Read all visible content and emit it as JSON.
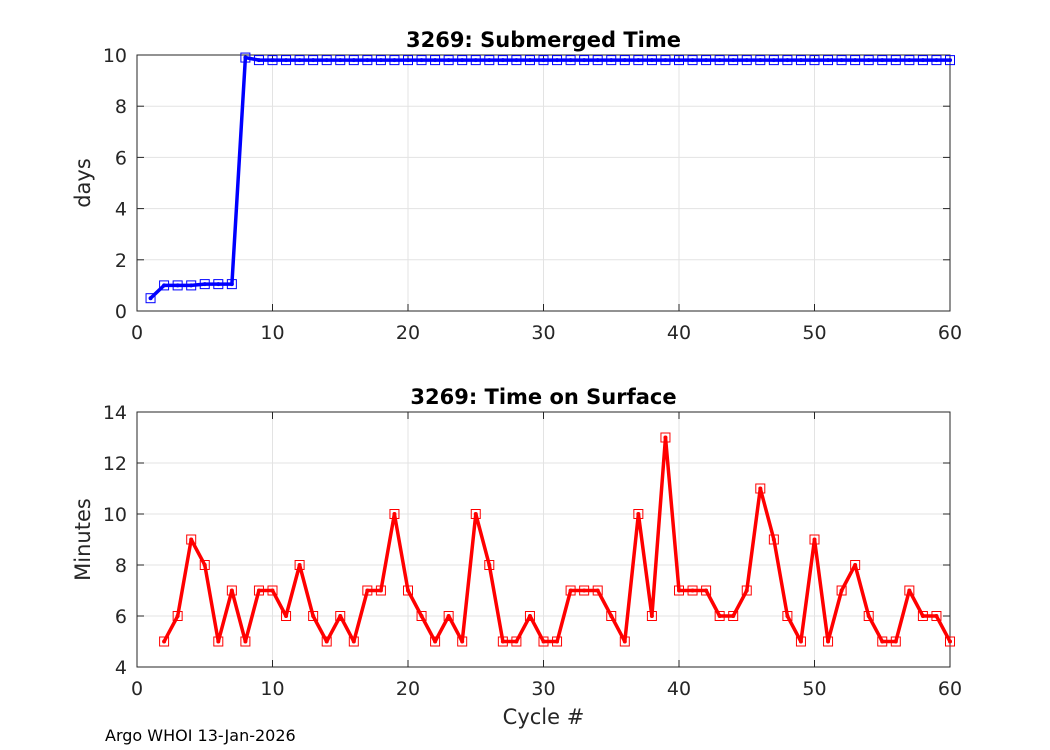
{
  "footer": "Argo WHOI 13-Jan-2026",
  "chart_data": [
    {
      "type": "line",
      "title": "3269: Submerged Time",
      "xlabel": "",
      "ylabel": "days",
      "xlim": [
        0,
        60
      ],
      "ylim": [
        0,
        10
      ],
      "xticks": [
        0,
        10,
        20,
        30,
        40,
        50,
        60
      ],
      "yticks": [
        0,
        2,
        4,
        6,
        8,
        10
      ],
      "grid": true,
      "color": "#0000ff",
      "series": [
        {
          "name": "Submerged Time",
          "x": [
            1,
            2,
            3,
            4,
            5,
            6,
            7,
            8,
            9,
            10,
            11,
            12,
            13,
            14,
            15,
            16,
            17,
            18,
            19,
            20,
            21,
            22,
            23,
            24,
            25,
            26,
            27,
            28,
            29,
            30,
            31,
            32,
            33,
            34,
            35,
            36,
            37,
            38,
            39,
            40,
            41,
            42,
            43,
            44,
            45,
            46,
            47,
            48,
            49,
            50,
            51,
            52,
            53,
            54,
            55,
            56,
            57,
            58,
            59,
            60
          ],
          "values": [
            0.5,
            1.0,
            1.0,
            1.0,
            1.05,
            1.05,
            1.05,
            9.9,
            9.8,
            9.8,
            9.8,
            9.8,
            9.8,
            9.8,
            9.8,
            9.8,
            9.8,
            9.8,
            9.8,
            9.8,
            9.8,
            9.8,
            9.8,
            9.8,
            9.8,
            9.8,
            9.8,
            9.8,
            9.8,
            9.8,
            9.8,
            9.8,
            9.8,
            9.8,
            9.8,
            9.8,
            9.8,
            9.8,
            9.8,
            9.8,
            9.8,
            9.8,
            9.8,
            9.8,
            9.8,
            9.8,
            9.8,
            9.8,
            9.8,
            9.8,
            9.8,
            9.8,
            9.8,
            9.8,
            9.8,
            9.8,
            9.8,
            9.8,
            9.8,
            9.8
          ]
        }
      ]
    },
    {
      "type": "line",
      "title": "3269: Time on Surface",
      "xlabel": "Cycle #",
      "ylabel": "Minutes",
      "xlim": [
        0,
        60
      ],
      "ylim": [
        4,
        14
      ],
      "xticks": [
        0,
        10,
        20,
        30,
        40,
        50,
        60
      ],
      "yticks": [
        4,
        6,
        8,
        10,
        12,
        14
      ],
      "grid": true,
      "color": "#ff0000",
      "series": [
        {
          "name": "Time on Surface",
          "x": [
            2,
            3,
            4,
            5,
            6,
            7,
            8,
            9,
            10,
            11,
            12,
            13,
            14,
            15,
            16,
            17,
            18,
            19,
            20,
            21,
            22,
            23,
            24,
            25,
            26,
            27,
            28,
            29,
            30,
            31,
            32,
            33,
            34,
            35,
            36,
            37,
            38,
            39,
            40,
            41,
            42,
            43,
            44,
            45,
            46,
            47,
            48,
            49,
            50,
            51,
            52,
            53,
            54,
            55,
            56,
            57,
            58,
            59,
            60
          ],
          "values": [
            5,
            6,
            9,
            8,
            5,
            7,
            5,
            7,
            7,
            6,
            8,
            6,
            5,
            6,
            5,
            7,
            7,
            10,
            7,
            6,
            5,
            6,
            5,
            10,
            8,
            5,
            5,
            6,
            5,
            5,
            7,
            7,
            7,
            6,
            5,
            10,
            6,
            13,
            7,
            7,
            7,
            6,
            6,
            7,
            11,
            9,
            6,
            5,
            9,
            5,
            7,
            8,
            6,
            5,
            5,
            7,
            6,
            6,
            5
          ]
        }
      ]
    }
  ]
}
